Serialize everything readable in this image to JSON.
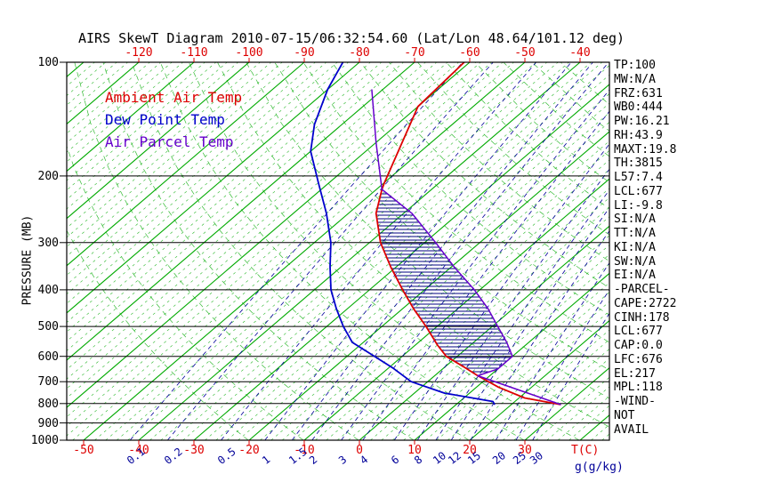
{
  "title": "AIRS SkewT Diagram 2010-07-15/06:32:54.60 (Lat/Lon 48.64/101.12 deg)",
  "legend": {
    "items": [
      {
        "label": "Ambient Air Temp",
        "series": "ambient"
      },
      {
        "label": "Dew Point Temp",
        "series": "dew"
      },
      {
        "label": "Air Parcel Temp",
        "series": "parcel"
      }
    ]
  },
  "colors": {
    "ambient": "#dd0000",
    "dew": "#0000cc",
    "parcel": "#6600cc",
    "isotherm": "#00aa00",
    "adiabat": "#00aa00",
    "mixing_ratio": "#000099",
    "pressure_line": "#000000",
    "hatch": "#000080",
    "text": "#000000"
  },
  "axes": {
    "pressure_label": "PRESSURE (MB)",
    "temp_unit": "T(C)",
    "mixing_unit": "g(g/kg)"
  },
  "stats": {
    "lines": [
      "TP:100",
      "MW:N/A",
      "FRZ:631",
      "WB0:444",
      "PW:16.21",
      "RH:43.9",
      "MAXT:19.8",
      "TH:3815",
      "L57:7.4",
      "LCL:677",
      "LI:-9.8",
      "SI:N/A",
      "TT:N/A",
      "KI:N/A",
      "SW:N/A",
      "EI:N/A",
      "-PARCEL-",
      "CAPE:2722",
      "CINH:178",
      "LCL:677",
      "CAP:0.0",
      "LFC:676",
      "EL:217",
      "MPL:118",
      "-WIND-",
      "NOT",
      "AVAIL"
    ]
  },
  "chart_data": {
    "type": "line",
    "projection": "skew-T log-P",
    "y_axis": {
      "label": "PRESSURE (MB)",
      "scale": "log",
      "range": [
        100,
        1000
      ],
      "ticks": [
        100,
        200,
        300,
        400,
        500,
        600,
        700,
        800,
        900,
        1000
      ]
    },
    "x_axis": {
      "label": "T(C)",
      "units": "degC",
      "bottom_ticks": [
        -50,
        -40,
        -30,
        -20,
        -10,
        0,
        10,
        20,
        30
      ],
      "top_ticks": [
        -120,
        -110,
        -100,
        -90,
        -80,
        -70,
        -60,
        -50,
        -40
      ]
    },
    "isotherms": {
      "solid_step_C": 10,
      "dashed_step_C": 2,
      "range_C": [
        -130,
        44
      ]
    },
    "dry_adiabats": {
      "step_K": 10,
      "range_K": [
        253,
        443
      ]
    },
    "mixing_ratio_lines": {
      "unit": "g(g/kg)",
      "values": [
        0.1,
        0.2,
        0.5,
        1,
        1.5,
        2,
        3,
        4,
        6,
        8,
        10,
        12,
        15,
        20,
        25,
        30
      ]
    },
    "series": [
      {
        "name": "Ambient Air Temp",
        "key": "ambient",
        "points_p_T": [
          [
            100,
            -61
          ],
          [
            131,
            -60
          ],
          [
            208,
            -50
          ],
          [
            217,
            -49
          ],
          [
            251,
            -45
          ],
          [
            300,
            -38
          ],
          [
            348,
            -31
          ],
          [
            400,
            -24
          ],
          [
            449,
            -18
          ],
          [
            500,
            -12
          ],
          [
            560,
            -6
          ],
          [
            600,
            -2
          ],
          [
            639,
            3.3
          ],
          [
            675,
            7.8
          ],
          [
            724,
            14
          ],
          [
            773,
            21
          ],
          [
            805,
            29
          ]
        ]
      },
      {
        "name": "Dew Point Temp",
        "key": "dew",
        "points_p_T": [
          [
            100,
            -83
          ],
          [
            118,
            -80
          ],
          [
            146,
            -75
          ],
          [
            172,
            -70
          ],
          [
            208,
            -62
          ],
          [
            251,
            -54
          ],
          [
            300,
            -47
          ],
          [
            348,
            -42
          ],
          [
            400,
            -37
          ],
          [
            449,
            -32
          ],
          [
            500,
            -27
          ],
          [
            551,
            -22
          ],
          [
            600,
            -15
          ],
          [
            646,
            -9
          ],
          [
            700,
            -3
          ],
          [
            751,
            5.5
          ],
          [
            790,
            16
          ],
          [
            805,
            17
          ]
        ]
      },
      {
        "name": "Air Parcel Temp",
        "key": "parcel",
        "points_p_T": [
          [
            118,
            -72
          ],
          [
            163,
            -60
          ],
          [
            217,
            -49
          ],
          [
            251,
            -38.5
          ],
          [
            300,
            -28
          ],
          [
            348,
            -19.5
          ],
          [
            400,
            -11
          ],
          [
            449,
            -4.5
          ],
          [
            500,
            1
          ],
          [
            551,
            6
          ],
          [
            600,
            10
          ],
          [
            648,
            10
          ],
          [
            675,
            7.8
          ],
          [
            805,
            29
          ]
        ]
      }
    ],
    "cape_area": {
      "between": [
        "parcel",
        "ambient"
      ],
      "pressure_range_mb": [
        217,
        675
      ],
      "hatch": "horizontal"
    },
    "annotations": {
      "EL_mb": 217,
      "LFC_mb": 676,
      "LCL_mb": 677,
      "MPL_mb": 118,
      "CAPE": 2722,
      "CINH": 178
    }
  }
}
